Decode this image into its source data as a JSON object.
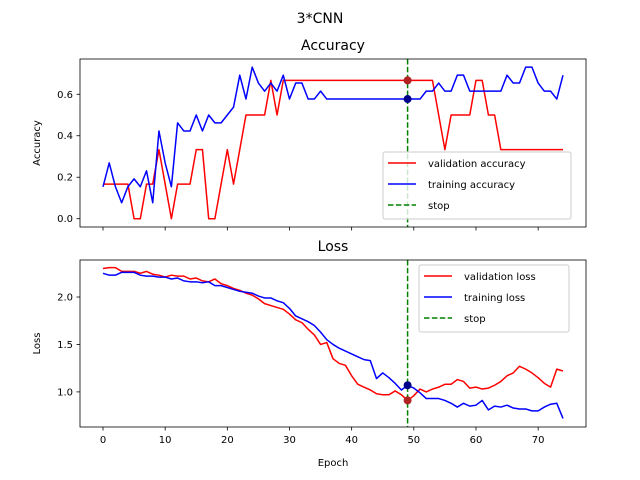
{
  "suptitle": "3*CNN",
  "colors": {
    "validation": "#ff0000",
    "training": "#0000ff",
    "stop": "#008000",
    "stop_marker_validation": "#b22222",
    "stop_marker_training": "#00008b"
  },
  "chart_data": [
    {
      "type": "line",
      "title": "Accuracy",
      "xlabel": "",
      "ylabel": "Accuracy",
      "xlim": [
        -3.7,
        77.7
      ],
      "ylim": [
        -0.04,
        0.77
      ],
      "xticks": [
        0,
        10,
        20,
        30,
        40,
        50,
        60,
        70
      ],
      "xtick_labels_visible": false,
      "yticks": [
        0.0,
        0.2,
        0.4,
        0.6
      ],
      "ytick_labels": [
        "0.0",
        "0.2",
        "0.4",
        "0.6"
      ],
      "stop_epoch": 49,
      "stop_points": [
        {
          "series": "validation accuracy",
          "x": 49,
          "y": 0.667
        },
        {
          "series": "training accuracy",
          "x": 49,
          "y": 0.577
        }
      ],
      "legend_position": "lower-right",
      "legend": [
        "validation accuracy",
        "training accuracy",
        "stop"
      ],
      "series": [
        {
          "name": "validation accuracy",
          "color": "#ff0000",
          "y": [
            0.167,
            0.167,
            0.167,
            0.167,
            0.167,
            0.0,
            0.0,
            0.167,
            0.167,
            0.333,
            0.167,
            0.0,
            0.167,
            0.167,
            0.167,
            0.333,
            0.333,
            0.0,
            0.0,
            0.167,
            0.333,
            0.167,
            0.333,
            0.5,
            0.5,
            0.5,
            0.5,
            0.667,
            0.5,
            0.667,
            0.667,
            0.667,
            0.667,
            0.667,
            0.667,
            0.667,
            0.667,
            0.667,
            0.667,
            0.667,
            0.667,
            0.667,
            0.667,
            0.667,
            0.667,
            0.667,
            0.667,
            0.667,
            0.667,
            0.667,
            0.667,
            0.667,
            0.667,
            0.667,
            0.5,
            0.333,
            0.5,
            0.5,
            0.5,
            0.5,
            0.667,
            0.667,
            0.5,
            0.5,
            0.333,
            0.333,
            0.333,
            0.333,
            0.333,
            0.333,
            0.333,
            0.333,
            0.333,
            0.333,
            0.333
          ]
        },
        {
          "name": "training accuracy",
          "color": "#0000ff",
          "y": [
            0.154,
            0.269,
            0.154,
            0.077,
            0.154,
            0.192,
            0.154,
            0.231,
            0.077,
            0.423,
            0.269,
            0.154,
            0.462,
            0.423,
            0.423,
            0.5,
            0.423,
            0.5,
            0.462,
            0.462,
            0.5,
            0.538,
            0.692,
            0.577,
            0.731,
            0.654,
            0.615,
            0.654,
            0.615,
            0.692,
            0.577,
            0.654,
            0.654,
            0.577,
            0.577,
            0.615,
            0.577,
            0.577,
            0.577,
            0.577,
            0.577,
            0.577,
            0.577,
            0.577,
            0.577,
            0.577,
            0.577,
            0.577,
            0.577,
            0.577,
            0.577,
            0.577,
            0.615,
            0.615,
            0.654,
            0.615,
            0.615,
            0.692,
            0.692,
            0.615,
            0.615,
            0.615,
            0.615,
            0.615,
            0.615,
            0.692,
            0.654,
            0.654,
            0.731,
            0.731,
            0.654,
            0.615,
            0.615,
            0.577,
            0.692
          ]
        }
      ]
    },
    {
      "type": "line",
      "title": "Loss",
      "xlabel": "Epoch",
      "ylabel": "Loss",
      "xlim": [
        -3.7,
        77.7
      ],
      "ylim": [
        0.63,
        2.39
      ],
      "xticks": [
        0,
        10,
        20,
        30,
        40,
        50,
        60,
        70
      ],
      "xtick_labels": [
        "0",
        "10",
        "20",
        "30",
        "40",
        "50",
        "60",
        "70"
      ],
      "xtick_labels_visible": true,
      "yticks": [
        1.0,
        1.5,
        2.0
      ],
      "ytick_labels": [
        "1.0",
        "1.5",
        "2.0"
      ],
      "stop_epoch": 49,
      "stop_points": [
        {
          "series": "validation loss",
          "x": 49,
          "y": 0.91
        },
        {
          "series": "training loss",
          "x": 49,
          "y": 1.07
        }
      ],
      "legend_position": "upper-right",
      "legend": [
        "validation loss",
        "training loss",
        "stop"
      ],
      "series": [
        {
          "name": "validation loss",
          "color": "#ff0000",
          "y": [
            2.3,
            2.31,
            2.31,
            2.27,
            2.27,
            2.27,
            2.25,
            2.27,
            2.24,
            2.23,
            2.21,
            2.23,
            2.22,
            2.22,
            2.19,
            2.2,
            2.17,
            2.16,
            2.19,
            2.14,
            2.12,
            2.09,
            2.07,
            2.04,
            2.02,
            1.98,
            1.93,
            1.91,
            1.89,
            1.87,
            1.82,
            1.76,
            1.73,
            1.66,
            1.6,
            1.5,
            1.52,
            1.35,
            1.3,
            1.28,
            1.17,
            1.08,
            1.05,
            1.02,
            0.98,
            0.97,
            0.97,
            1.01,
            0.97,
            0.91,
            0.96,
            1.03,
            1.0,
            1.03,
            1.05,
            1.08,
            1.08,
            1.13,
            1.11,
            1.04,
            1.05,
            1.03,
            1.04,
            1.07,
            1.11,
            1.17,
            1.2,
            1.27,
            1.24,
            1.2,
            1.15,
            1.09,
            1.05,
            1.24,
            1.22
          ]
        },
        {
          "name": "training loss",
          "color": "#0000ff",
          "y": [
            2.25,
            2.23,
            2.23,
            2.26,
            2.26,
            2.26,
            2.23,
            2.22,
            2.22,
            2.21,
            2.21,
            2.19,
            2.2,
            2.17,
            2.16,
            2.16,
            2.15,
            2.16,
            2.12,
            2.12,
            2.1,
            2.08,
            2.06,
            2.05,
            2.04,
            2.01,
            1.99,
            1.99,
            1.96,
            1.94,
            1.88,
            1.8,
            1.77,
            1.74,
            1.7,
            1.63,
            1.55,
            1.5,
            1.46,
            1.43,
            1.4,
            1.37,
            1.34,
            1.33,
            1.14,
            1.2,
            1.15,
            1.09,
            1.02,
            1.07,
            1.04,
            0.99,
            0.93,
            0.93,
            0.93,
            0.91,
            0.88,
            0.84,
            0.88,
            0.85,
            0.86,
            0.91,
            0.81,
            0.85,
            0.84,
            0.86,
            0.83,
            0.82,
            0.82,
            0.8,
            0.8,
            0.84,
            0.87,
            0.88,
            0.72
          ]
        }
      ]
    }
  ]
}
